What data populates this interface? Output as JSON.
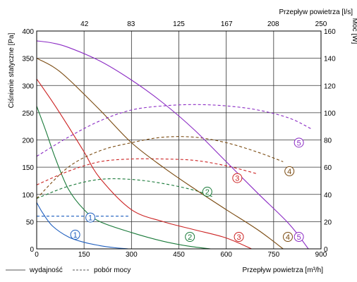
{
  "chart_data": {
    "type": "line",
    "title": "",
    "xlabel": "Przepływ powietrza [m³/h]",
    "xlabel_top": "Przepływ powietrza [l/s]",
    "ylabel": "Ciśnienie statyczne [Pa]",
    "ylabel_right": "Moc [W]",
    "xlim": [
      0,
      900
    ],
    "ylim": [
      0,
      400
    ],
    "ylim_right": [
      0,
      160
    ],
    "x_ticks": [
      "0",
      "150",
      "300",
      "450",
      "600",
      "750",
      "900"
    ],
    "x_ticks_top": [
      "42",
      "83",
      "125",
      "167",
      "208",
      "250"
    ],
    "y_ticks": [
      "0",
      "50",
      "100",
      "150",
      "200",
      "250",
      "300",
      "350",
      "400"
    ],
    "y_ticks_right": [
      "0",
      "20",
      "40",
      "60",
      "80",
      "100",
      "120",
      "140",
      "160"
    ],
    "grid": true,
    "legend": [
      {
        "label": "wydajność",
        "style": "solid"
      },
      {
        "label": "pobór mocy",
        "style": "dashed"
      }
    ],
    "series": [
      {
        "name": "1",
        "color": "#1f5fbf",
        "pressure": [
          [
            0,
            85
          ],
          [
            20,
            65
          ],
          [
            50,
            42
          ],
          [
            100,
            22
          ],
          [
            150,
            12
          ],
          [
            200,
            6
          ],
          [
            250,
            2
          ],
          [
            290,
            0
          ]
        ],
        "power": [
          [
            0,
            24
          ],
          [
            100,
            24
          ],
          [
            200,
            24
          ],
          [
            290,
            24
          ]
        ]
      },
      {
        "name": "2",
        "color": "#1a7a3a",
        "pressure": [
          [
            0,
            262
          ],
          [
            30,
            215
          ],
          [
            60,
            165
          ],
          [
            100,
            110
          ],
          [
            150,
            72
          ],
          [
            200,
            50
          ],
          [
            300,
            30
          ],
          [
            400,
            14
          ],
          [
            480,
            5
          ],
          [
            550,
            0
          ]
        ],
        "power": [
          [
            0,
            37
          ],
          [
            100,
            46
          ],
          [
            200,
            51
          ],
          [
            300,
            51
          ],
          [
            400,
            48
          ],
          [
            500,
            43
          ],
          [
            560,
            38
          ]
        ],
        "power_marker": [
          540,
          42
        ],
        "pressure_marker": [
          485,
          22
        ]
      },
      {
        "name": "3",
        "color": "#cc2222",
        "pressure": [
          [
            0,
            312
          ],
          [
            50,
            270
          ],
          [
            100,
            225
          ],
          [
            150,
            178
          ],
          [
            200,
            130
          ],
          [
            300,
            72
          ],
          [
            400,
            50
          ],
          [
            500,
            35
          ],
          [
            600,
            20
          ],
          [
            680,
            0
          ]
        ],
        "power": [
          [
            0,
            47
          ],
          [
            100,
            57
          ],
          [
            200,
            64
          ],
          [
            300,
            66
          ],
          [
            400,
            66
          ],
          [
            500,
            65
          ],
          [
            600,
            61
          ],
          [
            700,
            55
          ]
        ],
        "power_marker": [
          635,
          52
        ],
        "pressure_marker": [
          640,
          22
        ]
      },
      {
        "name": "4",
        "color": "#7a4a10",
        "pressure": [
          [
            0,
            350
          ],
          [
            50,
            335
          ],
          [
            100,
            312
          ],
          [
            200,
            255
          ],
          [
            300,
            195
          ],
          [
            400,
            150
          ],
          [
            500,
            110
          ],
          [
            600,
            72
          ],
          [
            700,
            35
          ],
          [
            780,
            0
          ]
        ],
        "power": [
          [
            0,
            37
          ],
          [
            100,
            60
          ],
          [
            200,
            72
          ],
          [
            300,
            78
          ],
          [
            400,
            82
          ],
          [
            500,
            82
          ],
          [
            600,
            78
          ],
          [
            700,
            71
          ],
          [
            780,
            64
          ]
        ],
        "power_marker": [
          800,
          57
        ],
        "pressure_marker": [
          795,
          22
        ]
      },
      {
        "name": "5",
        "color": "#8b2bc4",
        "pressure": [
          [
            0,
            382
          ],
          [
            50,
            378
          ],
          [
            100,
            370
          ],
          [
            200,
            345
          ],
          [
            300,
            310
          ],
          [
            400,
            268
          ],
          [
            500,
            218
          ],
          [
            600,
            160
          ],
          [
            700,
            102
          ],
          [
            800,
            45
          ],
          [
            860,
            0
          ]
        ],
        "power": [
          [
            0,
            68
          ],
          [
            100,
            82
          ],
          [
            200,
            94
          ],
          [
            300,
            102
          ],
          [
            400,
            105
          ],
          [
            500,
            106
          ],
          [
            600,
            105
          ],
          [
            700,
            102
          ],
          [
            800,
            96
          ],
          [
            870,
            88
          ]
        ],
        "power_marker": [
          830,
          78
        ],
        "pressure_marker": [
          830,
          22
        ]
      }
    ]
  }
}
